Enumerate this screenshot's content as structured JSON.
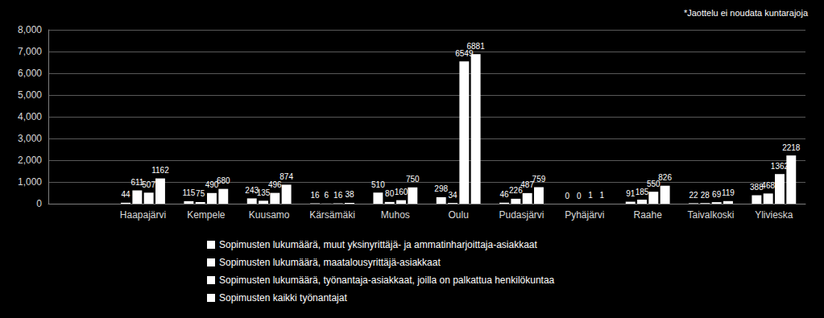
{
  "chart_data": {
    "type": "bar",
    "annotations": [
      "*Jaottelu ei noudata kuntarajoja"
    ],
    "categories": [
      null,
      "Haapajärvi",
      "Kempele",
      "Kuusamo",
      "Kärsämäki",
      "Muhos",
      "Oulu",
      "Pudasjärvi",
      "Pyhäjärvi",
      "Raahe",
      "Taivalkoski",
      "Ylivieska"
    ],
    "series": [
      {
        "name": "Sopimusten lukumäärä, muut yksinyrittäjä- ja ammatinharjoittaja-asiakkaat",
        "color": "#ffffff",
        "values": [
          null,
          44,
          115,
          243,
          16,
          510,
          298,
          46,
          0,
          91,
          22,
          388
        ]
      },
      {
        "name": "Sopimusten lukumäärä, maatalousyrittäjä-asiakkaat",
        "color": "#ffffff",
        "values": [
          null,
          611,
          75,
          135,
          6,
          80,
          34,
          226,
          0,
          185,
          28,
          468
        ]
      },
      {
        "name": "Sopimusten lukumäärä, työnantaja-asiakkaat, joilla on palkattua henkilökuntaa",
        "color": "#ffffff",
        "values": [
          null,
          507,
          490,
          496,
          16,
          160,
          6549,
          487,
          1,
          550,
          69,
          1362
        ]
      },
      {
        "name": "Sopimusten kaikki työnantajat",
        "color": "#ffffff",
        "values": [
          null,
          1162,
          680,
          874,
          38,
          750,
          6881,
          759,
          1,
          826,
          119,
          2218
        ]
      }
    ],
    "ylim": [
      0,
      8000
    ],
    "yticks": [
      0,
      1000,
      2000,
      3000,
      4000,
      5000,
      6000,
      7000,
      8000
    ],
    "grid": true,
    "legend": "bottom",
    "data_labels": true
  }
}
